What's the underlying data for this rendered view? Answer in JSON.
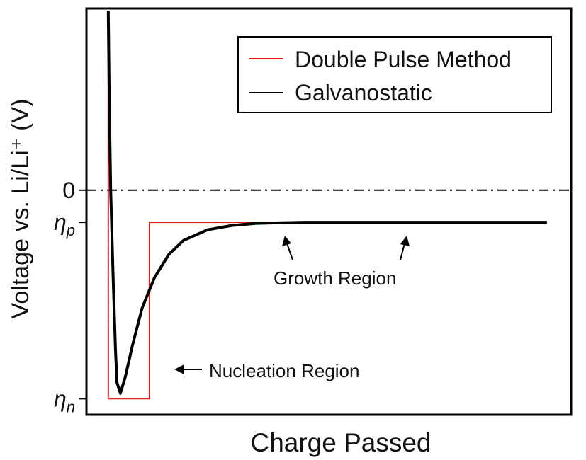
{
  "chart_data": {
    "type": "line",
    "title": "",
    "xlabel": "Charge Passed",
    "ylabel": "Voltage vs. Li/Li⁺ (V)",
    "yticks": [
      {
        "label": "0",
        "value": 0
      },
      {
        "label": "ηp",
        "value": -0.3
      },
      {
        "label": "ηn",
        "value": -1.95
      }
    ],
    "xlim": [
      0,
      10
    ],
    "ylim": [
      -2.1,
      1.7
    ],
    "legend_position": "top-right",
    "zero_line": "dash-dot",
    "series": [
      {
        "name": "Double Pulse Method",
        "color": "#e41a1c",
        "points": [
          [
            0.45,
            1.68
          ],
          [
            0.45,
            -1.95
          ],
          [
            1.3,
            -1.95
          ],
          [
            1.3,
            -0.3
          ],
          [
            9.5,
            -0.3
          ]
        ]
      },
      {
        "name": "Galvanostatic",
        "color": "#000000",
        "points": [
          [
            0.45,
            1.68
          ],
          [
            0.47,
            0.9
          ],
          [
            0.5,
            0.0
          ],
          [
            0.55,
            -0.8
          ],
          [
            0.6,
            -1.5
          ],
          [
            0.63,
            -1.8
          ],
          [
            0.7,
            -1.9
          ],
          [
            0.8,
            -1.75
          ],
          [
            0.95,
            -1.45
          ],
          [
            1.15,
            -1.1
          ],
          [
            1.4,
            -0.82
          ],
          [
            1.7,
            -0.6
          ],
          [
            2.0,
            -0.47
          ],
          [
            2.5,
            -0.37
          ],
          [
            3.0,
            -0.33
          ],
          [
            3.5,
            -0.31
          ],
          [
            4.5,
            -0.3
          ],
          [
            9.5,
            -0.3
          ]
        ]
      }
    ],
    "annotations": [
      {
        "text": "Nucleation Region",
        "arrow": "left"
      },
      {
        "text": "Growth Region",
        "arrow": "up",
        "arrow_count": 2
      }
    ]
  }
}
